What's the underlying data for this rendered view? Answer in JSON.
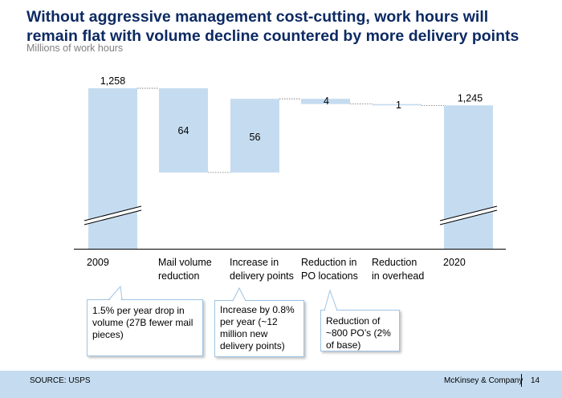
{
  "title": "Without aggressive management cost-cutting, work hours will remain flat with volume decline countered by more delivery points",
  "subtitle": "Millions of work hours",
  "chart_data": {
    "type": "waterfall",
    "categories": [
      "2009",
      "Mail volume reduction",
      "Increase in delivery points",
      "Reduction in PO locations",
      "Reduction in overhead",
      "2020"
    ],
    "category_lines": [
      [
        "2009"
      ],
      [
        "Mail volume",
        "reduction"
      ],
      [
        "Increase in",
        "delivery points"
      ],
      [
        "Reduction in",
        "PO locations"
      ],
      [
        "Reduction",
        "in overhead"
      ],
      [
        "2020"
      ]
    ],
    "values": [
      1258,
      -64,
      56,
      -4,
      -1,
      1245
    ],
    "labels": [
      "1,258",
      "64",
      "56",
      "4",
      "1",
      "1,245"
    ],
    "bar_color": "#c5dcf0",
    "axis_break": true
  },
  "callouts": [
    {
      "text": "1.5% per year drop in volume (27B fewer mail pieces)"
    },
    {
      "text": "Increase by 0.8% per year (~12 million new delivery points)"
    },
    {
      "text": "Reduction of ~800 PO’s (2% of base)"
    }
  ],
  "footer": {
    "source": "SOURCE: USPS",
    "company": "McKinsey & Company",
    "page": "14",
    "background": "#c5dcf0"
  }
}
